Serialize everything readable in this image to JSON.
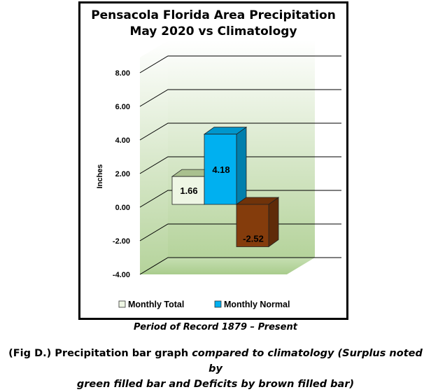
{
  "chart_data": {
    "type": "bar",
    "title_line1": "Pensacola Florida Area Precipitation",
    "title_line2": "May 2020 vs Climatology",
    "ylabel": "Inches",
    "ylim": [
      -4,
      8
    ],
    "ytick_values": [
      8,
      6,
      4,
      2,
      0,
      -2,
      -4
    ],
    "ytick_labels": [
      "8.00",
      "6.00",
      "4.00",
      "2.00",
      "0.00",
      "-2.00",
      "-4.00"
    ],
    "series": [
      {
        "name": "Monthly Total",
        "value": 1.66,
        "label": "1.66",
        "color": "#eef6e4"
      },
      {
        "name": "Monthly Normal",
        "value": 4.18,
        "label": "4.18",
        "color": "#00b0f0"
      },
      {
        "name": "",
        "value": -2.52,
        "label": "-2.52",
        "color": "#843c0c"
      }
    ],
    "legend_position": "bottom",
    "grid": true
  },
  "captions": {
    "period": "Period of Record 1879 – Present",
    "fig_prefix": "(Fig D.) Precipitation bar graph ",
    "fig_italic1": "compared to climatology (Surplus noted by",
    "fig_italic2": "green filled bar and Deficits by brown filled bar)"
  }
}
